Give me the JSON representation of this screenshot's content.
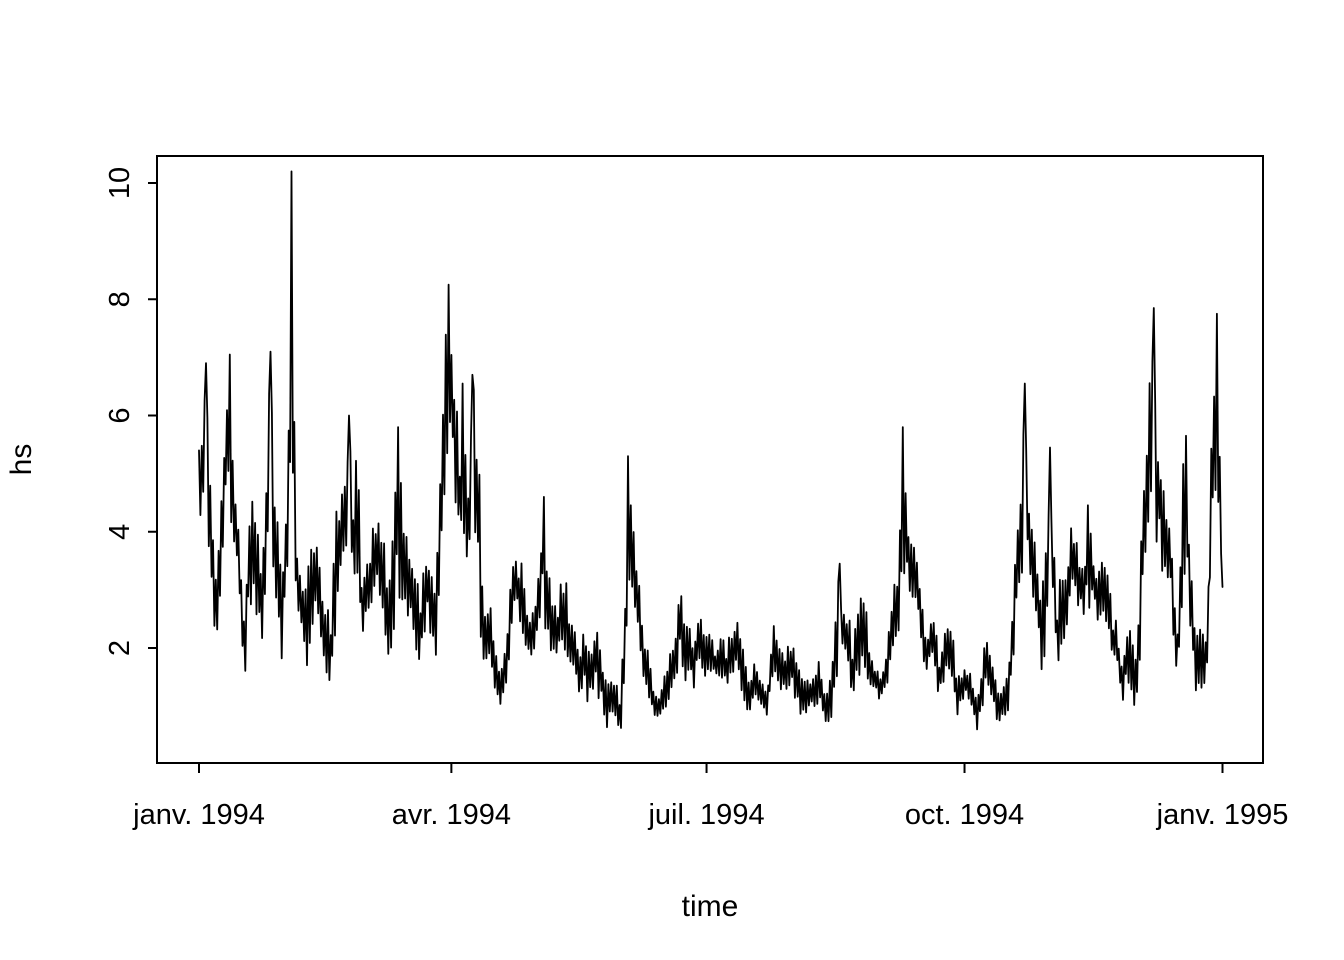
{
  "page": {
    "background": "#ffffff"
  },
  "chart_data": {
    "type": "line",
    "title": "",
    "xlabel": "time",
    "ylabel": "hs",
    "series_name": "hs",
    "line_color": "#000000",
    "grid": false,
    "legend": "none",
    "x_axis": {
      "tick_labels": [
        "janv. 1994",
        "avr. 1994",
        "juil. 1994",
        "oct. 1994",
        "janv. 1995"
      ],
      "tick_days": [
        0,
        90,
        181,
        273,
        365
      ]
    },
    "y_axis": {
      "ticks": [
        2,
        4,
        6,
        8,
        10
      ],
      "range_shown": [
        0.02,
        10.47
      ]
    },
    "x_range_days": [
      0,
      365
    ],
    "sample_step_days": 0.5,
    "note": "High-frequency noisy series; envelope_day_lo_hi lists [day, local-min, local-max] read from the plot; peaks_day_value lists exact extreme values visible.",
    "envelope_day_lo_hi": [
      [
        0,
        4.6,
        5.5
      ],
      [
        1,
        3.9,
        6.3
      ],
      [
        2.5,
        4.5,
        6.9
      ],
      [
        4,
        3.1,
        5.2
      ],
      [
        5,
        2.4,
        4.0
      ],
      [
        6.5,
        2.1,
        3.3
      ],
      [
        8,
        3.0,
        4.7
      ],
      [
        9.5,
        4.3,
        5.8
      ],
      [
        10.8,
        4.3,
        7.0
      ],
      [
        12,
        3.9,
        5.3
      ],
      [
        13.5,
        3.3,
        4.4
      ],
      [
        15,
        2.2,
        3.4
      ],
      [
        16.4,
        0.9,
        2.6
      ],
      [
        17.8,
        2.6,
        4.7
      ],
      [
        19.5,
        2.9,
        4.6
      ],
      [
        21,
        2.4,
        4.0
      ],
      [
        22.3,
        1.9,
        3.3
      ],
      [
        23.5,
        2.1,
        4.6
      ],
      [
        25.3,
        4.4,
        7.1
      ],
      [
        26.5,
        3.3,
        5.5
      ],
      [
        28,
        2.3,
        4.3
      ],
      [
        29.5,
        1.8,
        3.3
      ],
      [
        31.5,
        2.8,
        4.9
      ],
      [
        33.2,
        4.6,
        10.2
      ],
      [
        34.5,
        2.6,
        4.4
      ],
      [
        36,
        1.9,
        3.6
      ],
      [
        38.5,
        1.7,
        3.5
      ],
      [
        40,
        1.9,
        4.3
      ],
      [
        42,
        2.2,
        4.1
      ],
      [
        45,
        1.5,
        2.7
      ],
      [
        47.4,
        1.4,
        2.6
      ],
      [
        48.5,
        2.2,
        5.0
      ],
      [
        50.5,
        2.8,
        4.6
      ],
      [
        53.5,
        3.2,
        6.0
      ],
      [
        55,
        2.8,
        4.5
      ],
      [
        56.4,
        3.0,
        5.7
      ],
      [
        58.1,
        1.8,
        3.4
      ],
      [
        60.6,
        2.3,
        3.9
      ],
      [
        63.1,
        2.9,
        4.4
      ],
      [
        66,
        2.3,
        3.9
      ],
      [
        67.5,
        1.7,
        2.9
      ],
      [
        69.8,
        2.4,
        4.5
      ],
      [
        70.8,
        3.0,
        5.8
      ],
      [
        73,
        2.4,
        4.3
      ],
      [
        75.5,
        2.3,
        3.9
      ],
      [
        77.8,
        1.6,
        3.6
      ],
      [
        79,
        1.7,
        2.8
      ],
      [
        81.3,
        2.4,
        4.0
      ],
      [
        84.2,
        1.5,
        3.0
      ],
      [
        86,
        2.5,
        5.2
      ],
      [
        87.8,
        4.5,
        7.7
      ],
      [
        89.2,
        5.0,
        8.2
      ],
      [
        90.5,
        4.8,
        7.2
      ],
      [
        91.5,
        4.0,
        6.9
      ],
      [
        93,
        3.6,
        5.6
      ],
      [
        94.2,
        4.0,
        6.6
      ],
      [
        96,
        3.0,
        5.0
      ],
      [
        97.7,
        3.6,
        6.7
      ],
      [
        99.9,
        2.7,
        5.5
      ],
      [
        101,
        1.4,
        3.1
      ],
      [
        103.5,
        1.3,
        3.1
      ],
      [
        105.2,
        1.2,
        2.1
      ],
      [
        107.4,
        0.8,
        1.8
      ],
      [
        108.8,
        1.1,
        2.0
      ],
      [
        110.5,
        1.6,
        2.8
      ],
      [
        112.4,
        2.6,
        3.8
      ],
      [
        114.5,
        2.4,
        3.5
      ],
      [
        115.2,
        2.2,
        3.5
      ],
      [
        117.7,
        1.6,
        2.7
      ],
      [
        118.5,
        1.6,
        2.5
      ],
      [
        120.5,
        2.0,
        3.3
      ],
      [
        122.8,
        2.8,
        4.6
      ],
      [
        124,
        2.0,
        3.4
      ],
      [
        126,
        1.9,
        3.1
      ],
      [
        128,
        1.8,
        2.8
      ],
      [
        130.2,
        2.0,
        3.5
      ],
      [
        132.3,
        1.5,
        2.6
      ],
      [
        134,
        1.6,
        2.3
      ],
      [
        136,
        0.9,
        1.9
      ],
      [
        137.5,
        1.2,
        2.6
      ],
      [
        139,
        1.0,
        2.0
      ],
      [
        141.5,
        1.3,
        2.6
      ],
      [
        143,
        1.0,
        2.0
      ],
      [
        145.6,
        0.6,
        1.5
      ],
      [
        147,
        0.9,
        1.6
      ],
      [
        148.5,
        0.8,
        1.5
      ],
      [
        150.2,
        0.5,
        1.2
      ],
      [
        151.5,
        1.0,
        2.2
      ],
      [
        153,
        2.5,
        5.3
      ],
      [
        154.5,
        2.8,
        4.2
      ],
      [
        156,
        2.2,
        3.7
      ],
      [
        158,
        1.6,
        2.5
      ],
      [
        160,
        1.2,
        2.0
      ],
      [
        162.3,
        0.6,
        1.4
      ],
      [
        164,
        0.7,
        1.3
      ],
      [
        166,
        0.8,
        1.6
      ],
      [
        168.7,
        1.2,
        2.1
      ],
      [
        170.5,
        1.3,
        2.4
      ],
      [
        171.6,
        1.8,
        3.4
      ],
      [
        173.5,
        1.1,
        2.3
      ],
      [
        174.8,
        1.5,
        2.6
      ],
      [
        176.5,
        1.3,
        2.0
      ],
      [
        178.4,
        1.6,
        2.9
      ],
      [
        180,
        1.5,
        2.6
      ],
      [
        181.9,
        1.5,
        2.3
      ],
      [
        184,
        1.4,
        2.1
      ],
      [
        185.9,
        1.5,
        2.3
      ],
      [
        188,
        1.3,
        2.0
      ],
      [
        190.2,
        1.5,
        2.4
      ],
      [
        192.6,
        1.4,
        2.6
      ],
      [
        194.5,
        0.9,
        1.8
      ],
      [
        196.2,
        0.7,
        1.5
      ],
      [
        198,
        1.0,
        1.9
      ],
      [
        199.8,
        0.9,
        1.6
      ],
      [
        201,
        0.9,
        1.5
      ],
      [
        202.6,
        0.65,
        1.4
      ],
      [
        204,
        1.2,
        2.1
      ],
      [
        205.5,
        1.5,
        2.6
      ],
      [
        207,
        1.3,
        2.3
      ],
      [
        209,
        1.2,
        2.0
      ],
      [
        211.6,
        1.3,
        2.2
      ],
      [
        213.5,
        0.9,
        1.7
      ],
      [
        216.2,
        0.7,
        1.4
      ],
      [
        218,
        0.8,
        1.5
      ],
      [
        221.2,
        1.0,
        1.9
      ],
      [
        223.3,
        0.65,
        1.3
      ],
      [
        225.5,
        0.7,
        1.5
      ],
      [
        228.3,
        1.6,
        3.4
      ],
      [
        230,
        1.7,
        2.8
      ],
      [
        231.9,
        1.8,
        2.6
      ],
      [
        232.9,
        0.9,
        1.9
      ],
      [
        234.7,
        1.5,
        2.7
      ],
      [
        237.2,
        1.6,
        3.0
      ],
      [
        239.4,
        1.1,
        2.0
      ],
      [
        241,
        1.2,
        1.8
      ],
      [
        242.6,
        0.9,
        1.6
      ],
      [
        245,
        1.2,
        2.0
      ],
      [
        247.9,
        1.8,
        3.1
      ],
      [
        249.5,
        2.2,
        3.4
      ],
      [
        250.8,
        2.9,
        5.8
      ],
      [
        252.5,
        3.3,
        4.2
      ],
      [
        254,
        2.8,
        3.8
      ],
      [
        256.1,
        2.5,
        3.8
      ],
      [
        258.6,
        1.3,
        2.6
      ],
      [
        260.5,
        1.6,
        2.4
      ],
      [
        262.2,
        1.6,
        2.8
      ],
      [
        264,
        1.0,
        1.8
      ],
      [
        266.1,
        1.4,
        2.6
      ],
      [
        267.9,
        1.3,
        2.6
      ],
      [
        270.4,
        0.8,
        1.6
      ],
      [
        272.5,
        1.0,
        1.7
      ],
      [
        274.7,
        1.1,
        1.8
      ],
      [
        276,
        0.9,
        1.4
      ],
      [
        277.5,
        0.5,
        1.2
      ],
      [
        280.4,
        1.2,
        2.2
      ],
      [
        282.5,
        1.0,
        1.9
      ],
      [
        284,
        0.8,
        1.5
      ],
      [
        285.7,
        0.6,
        1.2
      ],
      [
        287.5,
        0.7,
        1.4
      ],
      [
        289.3,
        1.0,
        2.2
      ],
      [
        291.5,
        2.6,
        3.9
      ],
      [
        292.8,
        3.1,
        4.5
      ],
      [
        294.7,
        3.3,
        6.5
      ],
      [
        296,
        3.0,
        4.7
      ],
      [
        298.6,
        2.5,
        3.6
      ],
      [
        300.7,
        1.5,
        3.1
      ],
      [
        302.5,
        2.2,
        4.3
      ],
      [
        303.3,
        3.2,
        5.4
      ],
      [
        306.1,
        1.4,
        2.8
      ],
      [
        307.9,
        2.1,
        3.6
      ],
      [
        309.5,
        2.1,
        3.2
      ],
      [
        310.7,
        2.8,
        4.4
      ],
      [
        312.5,
        2.8,
        4.0
      ],
      [
        313.9,
        2.6,
        3.8
      ],
      [
        315.7,
        2.4,
        3.3
      ],
      [
        316.8,
        2.7,
        4.6
      ],
      [
        318.5,
        2.6,
        3.9
      ],
      [
        320.4,
        2.3,
        3.4
      ],
      [
        322,
        2.5,
        3.5
      ],
      [
        323.9,
        2.4,
        3.4
      ],
      [
        326,
        1.5,
        2.7
      ],
      [
        327.5,
        1.5,
        2.4
      ],
      [
        329.3,
        0.9,
        1.9
      ],
      [
        331.1,
        1.3,
        2.6
      ],
      [
        333.6,
        1.0,
        1.9
      ],
      [
        335.3,
        1.4,
        2.6
      ],
      [
        336.4,
        2.4,
        4.8
      ],
      [
        338,
        3.8,
        6.1
      ],
      [
        340.4,
        4.2,
        7.8
      ],
      [
        342,
        3.6,
        5.9
      ],
      [
        343.6,
        3.3,
        5.2
      ],
      [
        345,
        3.3,
        4.4
      ],
      [
        346.4,
        3.0,
        4.0
      ],
      [
        348,
        1.8,
        2.9
      ],
      [
        348.9,
        0.9,
        2.3
      ],
      [
        350.5,
        2.4,
        4.9
      ],
      [
        351.8,
        3.5,
        5.6
      ],
      [
        353.5,
        2.1,
        3.8
      ],
      [
        355.7,
        1.0,
        2.2
      ],
      [
        357.8,
        1.3,
        2.5
      ],
      [
        359,
        1.1,
        2.1
      ],
      [
        360,
        2.2,
        3.5
      ],
      [
        361,
        3.4,
        6.2
      ],
      [
        362.8,
        4.4,
        7.75
      ],
      [
        364,
        3.9,
        5.8
      ],
      [
        365,
        3.0,
        3.6
      ]
    ],
    "peaks_day_value": [
      [
        0,
        5.4
      ],
      [
        2.5,
        6.9
      ],
      [
        10.8,
        7.05
      ],
      [
        25.3,
        7.1
      ],
      [
        33.2,
        10.2
      ],
      [
        53.5,
        6.0
      ],
      [
        70.8,
        5.8
      ],
      [
        89.2,
        8.25
      ],
      [
        94.2,
        6.55
      ],
      [
        97.7,
        6.7
      ],
      [
        122.8,
        4.6
      ],
      [
        153,
        5.3
      ],
      [
        228.3,
        3.45
      ],
      [
        250.8,
        5.8
      ],
      [
        294.7,
        6.55
      ],
      [
        303.3,
        5.45
      ],
      [
        340.4,
        7.85
      ],
      [
        351.8,
        5.65
      ],
      [
        362.8,
        7.75
      ],
      [
        365,
        3.05
      ]
    ]
  }
}
